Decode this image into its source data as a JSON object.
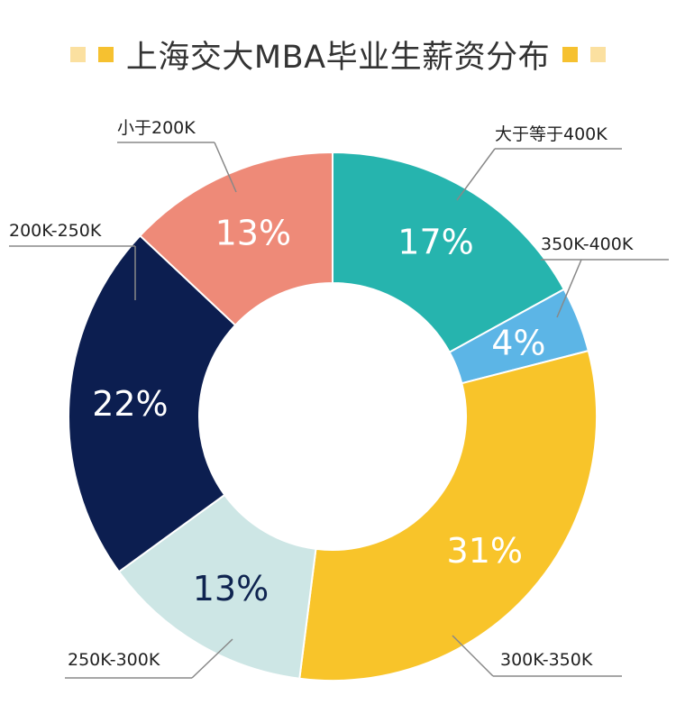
{
  "title": "上海交大MBA毕业生薪资分布",
  "colors": {
    "title_square_dark": "#f6c130",
    "title_square_light": "#fbe0a0"
  },
  "chart_data": {
    "type": "pie",
    "donut": true,
    "title": "上海交大MBA毕业生薪资分布",
    "legend": "none",
    "slices": [
      {
        "category": "大于等于400K",
        "value": 17,
        "label": "17%",
        "color": "#26b4ae",
        "text_color": "#ffffff"
      },
      {
        "category": "350K-400K",
        "value": 4,
        "label": "4%",
        "color": "#5cb5e6",
        "text_color": "#ffffff"
      },
      {
        "category": "300K-350K",
        "value": 31,
        "label": "31%",
        "color": "#f8c42a",
        "text_color": "#ffffff"
      },
      {
        "category": "250K-300K",
        "value": 13,
        "label": "13%",
        "color": "#cde6e5",
        "text_color": "#0f2450"
      },
      {
        "category": "200K-250K",
        "value": 22,
        "label": "22%",
        "color": "#0c1e50",
        "text_color": "#ffffff"
      },
      {
        "category": "小于200K",
        "value": 13,
        "label": "13%",
        "color": "#ee8a78",
        "text_color": "#ffffff"
      }
    ]
  }
}
